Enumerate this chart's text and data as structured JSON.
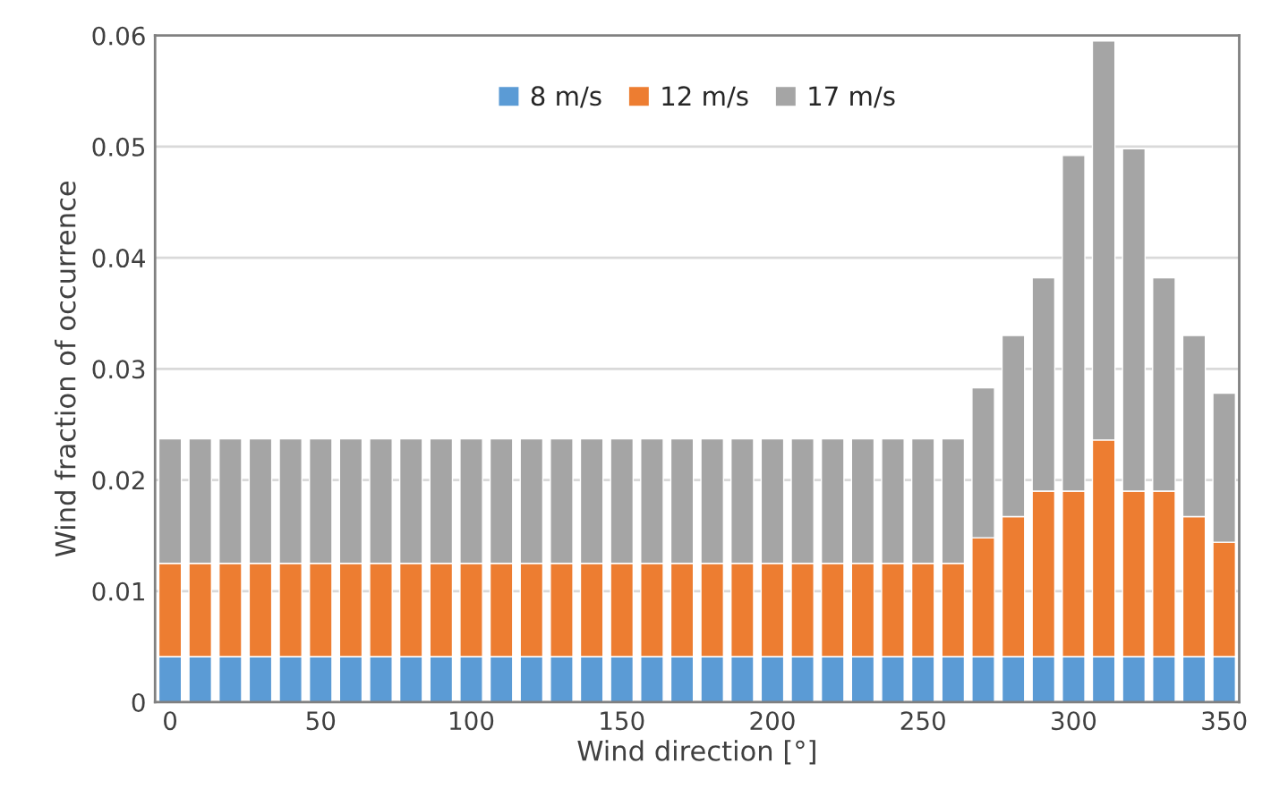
{
  "chart_data": {
    "type": "bar",
    "stacked": true,
    "xlabel": "Wind direction [°]",
    "ylabel": "Wind fraction of occurrence",
    "x": [
      0,
      10,
      20,
      30,
      40,
      50,
      60,
      70,
      80,
      90,
      100,
      110,
      120,
      130,
      140,
      150,
      160,
      170,
      180,
      190,
      200,
      210,
      220,
      230,
      240,
      250,
      260,
      270,
      280,
      290,
      300,
      310,
      320,
      330,
      340,
      350
    ],
    "series": [
      {
        "name": "8 m/s",
        "color": "#5b9bd5",
        "values": [
          0.0041,
          0.0041,
          0.0041,
          0.0041,
          0.0041,
          0.0041,
          0.0041,
          0.0041,
          0.0041,
          0.0041,
          0.0041,
          0.0041,
          0.0041,
          0.0041,
          0.0041,
          0.0041,
          0.0041,
          0.0041,
          0.0041,
          0.0041,
          0.0041,
          0.0041,
          0.0041,
          0.0041,
          0.0041,
          0.0041,
          0.0041,
          0.0041,
          0.0041,
          0.0041,
          0.0041,
          0.0041,
          0.0041,
          0.0041,
          0.0041,
          0.0041
        ]
      },
      {
        "name": "12 m/s",
        "color": "#ed7d31",
        "values": [
          0.0084,
          0.0084,
          0.0084,
          0.0084,
          0.0084,
          0.0084,
          0.0084,
          0.0084,
          0.0084,
          0.0084,
          0.0084,
          0.0084,
          0.0084,
          0.0084,
          0.0084,
          0.0084,
          0.0084,
          0.0084,
          0.0084,
          0.0084,
          0.0084,
          0.0084,
          0.0084,
          0.0084,
          0.0084,
          0.0084,
          0.0084,
          0.0107,
          0.0126,
          0.0149,
          0.0149,
          0.0195,
          0.0149,
          0.0149,
          0.0126,
          0.0103
        ]
      },
      {
        "name": "17 m/s",
        "color": "#a5a5a5",
        "values": [
          0.0112,
          0.0112,
          0.0112,
          0.0112,
          0.0112,
          0.0112,
          0.0112,
          0.0112,
          0.0112,
          0.0112,
          0.0112,
          0.0112,
          0.0112,
          0.0112,
          0.0112,
          0.0112,
          0.0112,
          0.0112,
          0.0112,
          0.0112,
          0.0112,
          0.0112,
          0.0112,
          0.0112,
          0.0112,
          0.0112,
          0.0112,
          0.0135,
          0.0163,
          0.0192,
          0.0302,
          0.0359,
          0.0308,
          0.0192,
          0.0163,
          0.0134
        ]
      }
    ],
    "xlim": [
      -5,
      355
    ],
    "xticks": [
      0,
      50,
      100,
      150,
      200,
      250,
      300,
      350
    ],
    "ylim": [
      0,
      0.06
    ],
    "yticks": [
      0,
      0.01,
      0.02,
      0.03,
      0.04,
      0.05,
      0.06
    ],
    "grid": "y",
    "legend": "top"
  }
}
